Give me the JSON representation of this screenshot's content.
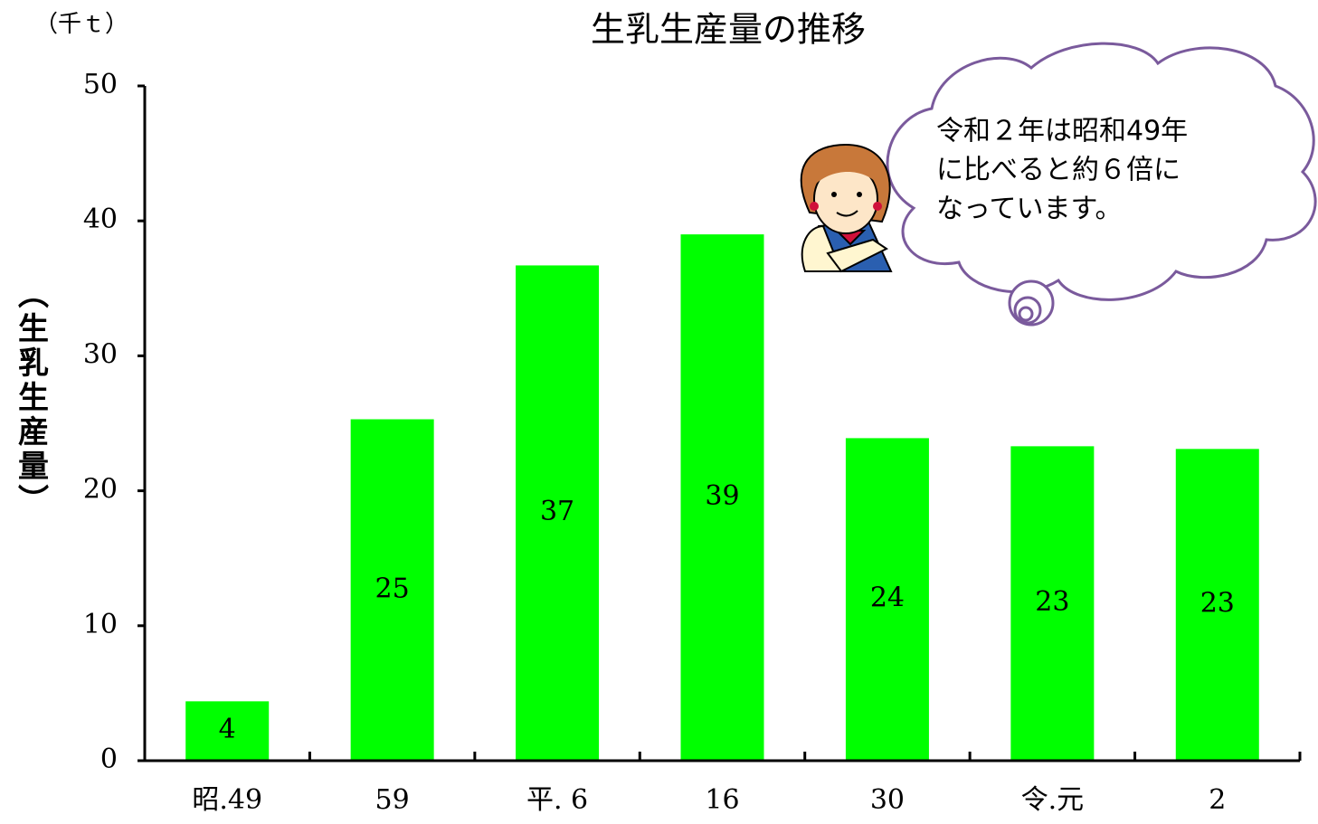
{
  "chart_data": {
    "type": "bar",
    "title": "生乳生産量の推移",
    "unit_label": "（千ｔ）",
    "y_label": "（生乳生産量）",
    "categories": [
      "昭.49",
      "59",
      "平. 6",
      "16",
      "30",
      "令.元",
      "2"
    ],
    "values": [
      4.4,
      25.3,
      36.7,
      39.0,
      23.9,
      23.3,
      23.1
    ],
    "value_labels": [
      "4",
      "25",
      "37",
      "39",
      "24",
      "23",
      "23"
    ],
    "color": "#00ff00",
    "ylim": [
      0,
      50
    ],
    "yticks": [
      0,
      10,
      20,
      30,
      40,
      50
    ],
    "annotation": [
      "令和２年は昭和49年",
      "に比べると約６倍に",
      "なっています。"
    ]
  }
}
